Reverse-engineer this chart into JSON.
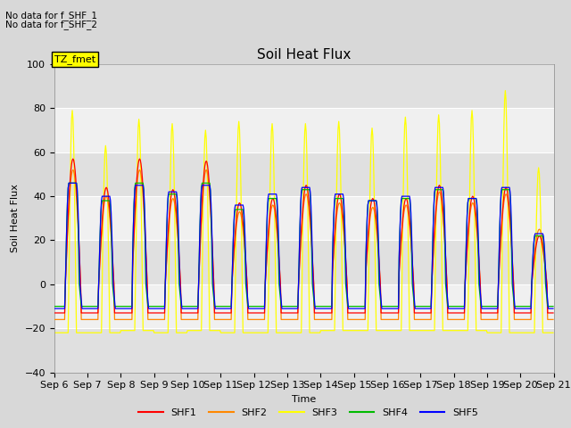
{
  "title": "Soil Heat Flux",
  "ylabel": "Soil Heat Flux",
  "xlabel": "Time",
  "annotation_lines": [
    "No data for f_SHF_1",
    "No data for f_SHF_2"
  ],
  "tz_label": "TZ_fmet",
  "ylim": [
    -40,
    100
  ],
  "yticks": [
    -40,
    -20,
    0,
    20,
    40,
    60,
    80,
    100
  ],
  "x_tick_labels": [
    "Sep 6",
    "Sep 7",
    "Sep 8",
    "Sep 9",
    "Sep 10",
    "Sep 11",
    "Sep 12",
    "Sep 13",
    "Sep 14",
    "Sep 15",
    "Sep 16",
    "Sep 17",
    "Sep 18",
    "Sep 19",
    "Sep 20",
    "Sep 21"
  ],
  "series_colors": {
    "SHF1": "#ff0000",
    "SHF2": "#ff8800",
    "SHF3": "#ffff00",
    "SHF4": "#00bb00",
    "SHF5": "#0000ff"
  },
  "background_color": "#d8d8d8",
  "plot_bg_color_light": "#f0f0f0",
  "plot_bg_color_dark": "#e0e0e0",
  "grid_color": "#ffffff",
  "title_fontsize": 11,
  "axis_fontsize": 8,
  "tick_fontsize": 8,
  "n_days": 15,
  "hours_per_day": 48,
  "shf3_peaks": [
    79,
    63,
    75,
    73,
    70,
    74,
    73,
    73,
    74,
    71,
    76,
    77,
    79,
    88,
    53
  ],
  "shf1_peaks": [
    57,
    44,
    57,
    43,
    56,
    37,
    39,
    45,
    41,
    39,
    39,
    45,
    40,
    44,
    22
  ],
  "shf2_peaks": [
    52,
    40,
    52,
    39,
    52,
    33,
    36,
    41,
    37,
    35,
    36,
    42,
    37,
    41,
    25
  ],
  "shf4_peaks": [
    46,
    38,
    46,
    41,
    46,
    34,
    39,
    43,
    39,
    38,
    39,
    43,
    39,
    43,
    22
  ],
  "shf5_peaks": [
    46,
    40,
    45,
    42,
    45,
    36,
    41,
    44,
    41,
    38,
    40,
    44,
    39,
    44,
    23
  ],
  "shf3_neg": [
    -22,
    -22,
    -21,
    -22,
    -21,
    -22,
    -22,
    -22,
    -21,
    -21,
    -21,
    -21,
    -21,
    -22,
    -22
  ],
  "shf1_neg": [
    -13,
    -13,
    -13,
    -13,
    -13,
    -13,
    -13,
    -13,
    -13,
    -13,
    -13,
    -13,
    -13,
    -13,
    -13
  ],
  "shf2_neg": [
    -16,
    -16,
    -16,
    -16,
    -16,
    -16,
    -16,
    -16,
    -16,
    -16,
    -16,
    -16,
    -16,
    -16,
    -16
  ],
  "shf4_neg": [
    -10,
    -10,
    -10,
    -10,
    -10,
    -10,
    -10,
    -10,
    -10,
    -10,
    -10,
    -10,
    -10,
    -10,
    -10
  ],
  "shf5_neg": [
    -11,
    -11,
    -11,
    -11,
    -11,
    -11,
    -11,
    -11,
    -11,
    -11,
    -11,
    -11,
    -11,
    -11,
    -11
  ]
}
